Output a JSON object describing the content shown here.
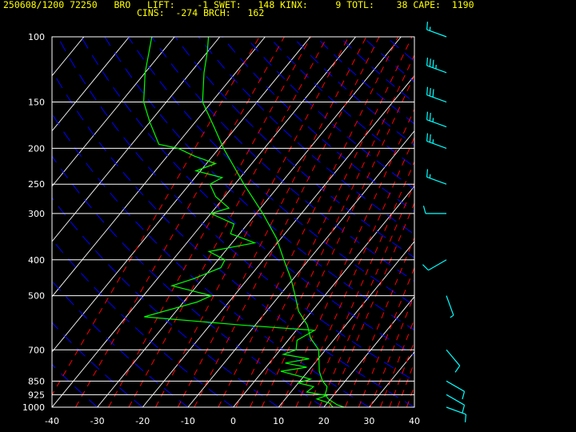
{
  "header": {
    "line1": "250608/1200 72250   BRO   LIFT:    -1 SWET:   148 KINX:     9 TOTL:    38 CAPE:  1190",
    "line2": "CINS:  -274 BRCH:   162"
  },
  "chart_data": {
    "type": "skew-t log-p sounding",
    "title": "250608/1200 72250 BRO",
    "station": "72250 BRO",
    "date_time": "250608/1200",
    "indices": {
      "LIFT": -1,
      "SWET": 148,
      "KINX": 9,
      "TOTL": 38,
      "CAPE": 1190,
      "CINS": -274,
      "BRCH": 162
    },
    "x_axis": {
      "label": "",
      "units": "°C",
      "range": [
        -40,
        40
      ],
      "ticks": [
        -40,
        -30,
        -20,
        -10,
        0,
        10,
        20,
        30,
        40
      ]
    },
    "y_axis": {
      "label": "",
      "units": "hPa",
      "scale": "log",
      "range": [
        1000,
        100
      ],
      "ticks": [
        1000,
        925,
        850,
        700,
        500,
        400,
        300,
        250,
        200,
        150,
        100
      ]
    },
    "grid": true,
    "colors": {
      "background": "#000000",
      "isobars_isotherms": "#ffffff",
      "dry_adiabats": "#0000ff",
      "mixing_ratio": "#ff0000",
      "temperature": "#00ff00",
      "dewpoint": "#00ff00",
      "wind_barbs": "#00ffff",
      "header_text": "#ffff00"
    },
    "series": [
      {
        "name": "",
        "kind": "temperature",
        "points": [
          {
            "p": 1000,
            "t": 24.5
          },
          {
            "p": 985,
            "t": 22.5
          },
          {
            "p": 950,
            "t": 19.5
          },
          {
            "p": 925,
            "t": 18.0
          },
          {
            "p": 900,
            "t": 17.5
          },
          {
            "p": 880,
            "t": 17.0
          },
          {
            "p": 850,
            "t": 15.0
          },
          {
            "p": 800,
            "t": 12.5
          },
          {
            "p": 700,
            "t": 8.5
          },
          {
            "p": 650,
            "t": 4.5
          },
          {
            "p": 600,
            "t": 1.5
          },
          {
            "p": 550,
            "t": -3.0
          },
          {
            "p": 500,
            "t": -6.5
          },
          {
            "p": 450,
            "t": -10.5
          },
          {
            "p": 400,
            "t": -15.5
          },
          {
            "p": 350,
            "t": -21.0
          },
          {
            "p": 300,
            "t": -28.5
          },
          {
            "p": 250,
            "t": -38.0
          },
          {
            "p": 200,
            "t": -49.0
          },
          {
            "p": 175,
            "t": -55.0
          },
          {
            "p": 150,
            "t": -62.0
          },
          {
            "p": 125,
            "t": -67.0
          },
          {
            "p": 110,
            "t": -70.0
          },
          {
            "p": 100,
            "t": -72.5
          }
        ]
      },
      {
        "name": "",
        "kind": "dewpoint",
        "points": [
          {
            "p": 1000,
            "t": 22.0
          },
          {
            "p": 975,
            "t": 20.5
          },
          {
            "p": 950,
            "t": 17.0
          },
          {
            "p": 930,
            "t": 18.5
          },
          {
            "p": 910,
            "t": 13.5
          },
          {
            "p": 880,
            "t": 14.0
          },
          {
            "p": 860,
            "t": 10.0
          },
          {
            "p": 840,
            "t": 12.0
          },
          {
            "p": 800,
            "t": 4.0
          },
          {
            "p": 780,
            "t": 9.0
          },
          {
            "p": 760,
            "t": 3.5
          },
          {
            "p": 740,
            "t": 8.0
          },
          {
            "p": 720,
            "t": 1.5
          },
          {
            "p": 700,
            "t": 3.5
          },
          {
            "p": 660,
            "t": 2.0
          },
          {
            "p": 620,
            "t": 4.0
          },
          {
            "p": 600,
            "t": -13.0
          },
          {
            "p": 570,
            "t": -36.0
          },
          {
            "p": 520,
            "t": -27.0
          },
          {
            "p": 500,
            "t": -25.0
          },
          {
            "p": 470,
            "t": -35.5
          },
          {
            "p": 450,
            "t": -32.0
          },
          {
            "p": 420,
            "t": -28.0
          },
          {
            "p": 400,
            "t": -28.5
          },
          {
            "p": 380,
            "t": -33.5
          },
          {
            "p": 360,
            "t": -25.0
          },
          {
            "p": 340,
            "t": -32.0
          },
          {
            "p": 320,
            "t": -33.0
          },
          {
            "p": 300,
            "t": -40.0
          },
          {
            "p": 290,
            "t": -37.0
          },
          {
            "p": 270,
            "t": -42.0
          },
          {
            "p": 250,
            "t": -45.5
          },
          {
            "p": 240,
            "t": -44.0
          },
          {
            "p": 230,
            "t": -51.0
          },
          {
            "p": 220,
            "t": -48.0
          },
          {
            "p": 210,
            "t": -54.0
          },
          {
            "p": 200,
            "t": -59.0
          },
          {
            "p": 195,
            "t": -64.0
          },
          {
            "p": 170,
            "t": -70.0
          },
          {
            "p": 150,
            "t": -75.0
          },
          {
            "p": 125,
            "t": -80.0
          },
          {
            "p": 100,
            "t": -85.0
          }
        ]
      }
    ],
    "winds": [
      {
        "p": 100,
        "dir": 290,
        "spd": 15
      },
      {
        "p": 125,
        "dir": 290,
        "spd": 35
      },
      {
        "p": 150,
        "dir": 290,
        "spd": 30
      },
      {
        "p": 175,
        "dir": 290,
        "spd": 25
      },
      {
        "p": 200,
        "dir": 290,
        "spd": 25
      },
      {
        "p": 250,
        "dir": 290,
        "spd": 15
      },
      {
        "p": 300,
        "dir": 270,
        "spd": 10
      },
      {
        "p": 400,
        "dir": 240,
        "spd": 10
      },
      {
        "p": 500,
        "dir": 160,
        "spd": 5
      },
      {
        "p": 700,
        "dir": 140,
        "spd": 10
      },
      {
        "p": 850,
        "dir": 120,
        "spd": 10
      },
      {
        "p": 925,
        "dir": 120,
        "spd": 10
      },
      {
        "p": 1000,
        "dir": 110,
        "spd": 10
      }
    ]
  }
}
